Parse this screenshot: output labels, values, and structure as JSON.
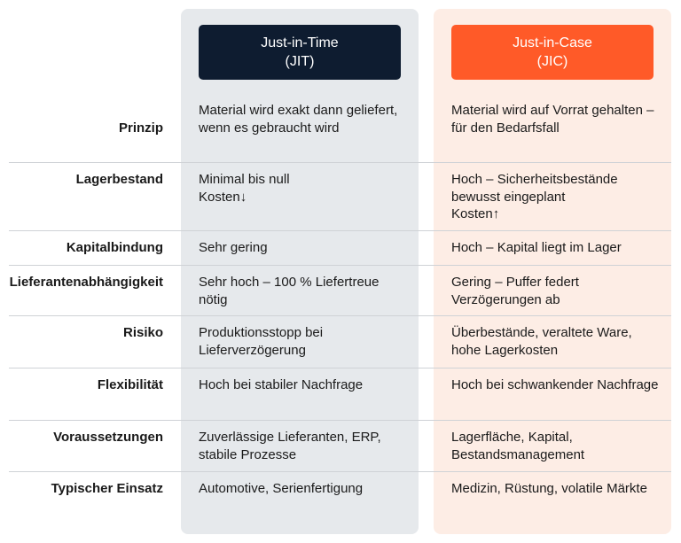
{
  "header": {
    "jit": "Just-in-Time\n(JIT)",
    "jic": "Just-in-Case\n(JIC)"
  },
  "rows": [
    {
      "label": "Prinzip",
      "jit": "Material wird exakt dann geliefert, wenn es gebraucht wird",
      "jic": "Material wird auf Vorrat gehalten – für den Bedarfsfall"
    },
    {
      "label": "Lagerbestand",
      "jit": "Minimal bis null\nKosten↓",
      "jic": "Hoch – Sicherheitsbestände bewusst eingeplant\nKosten↑"
    },
    {
      "label": "Kapitalbindung",
      "jit": "Sehr gering",
      "jic": "Hoch – Kapital liegt im Lager"
    },
    {
      "label": "Lieferantenabhängigkeit",
      "jit": "Sehr hoch – 100 % Liefertreue nötig",
      "jic": "Gering – Puffer federt Verzögerungen ab"
    },
    {
      "label": "Risiko",
      "jit": "Produktionsstopp bei Lieferverzögerung",
      "jic": "Überbestände, veraltete Ware, hohe Lagerkosten"
    },
    {
      "label": "Flexibilität",
      "jit": "Hoch bei stabiler Nachfrage",
      "jic": "Hoch bei schwankender Nachfrage"
    },
    {
      "label": "Voraussetzungen",
      "jit": "Zuverlässige Lieferanten, ERP, stabile Prozesse",
      "jic": "Lagerfläche, Kapital, Bestandsmanagement"
    },
    {
      "label": "Typischer Einsatz",
      "jit": "Automotive, Serienfertigung",
      "jic": "Medizin, Rüstung, volatile Märkte"
    }
  ]
}
